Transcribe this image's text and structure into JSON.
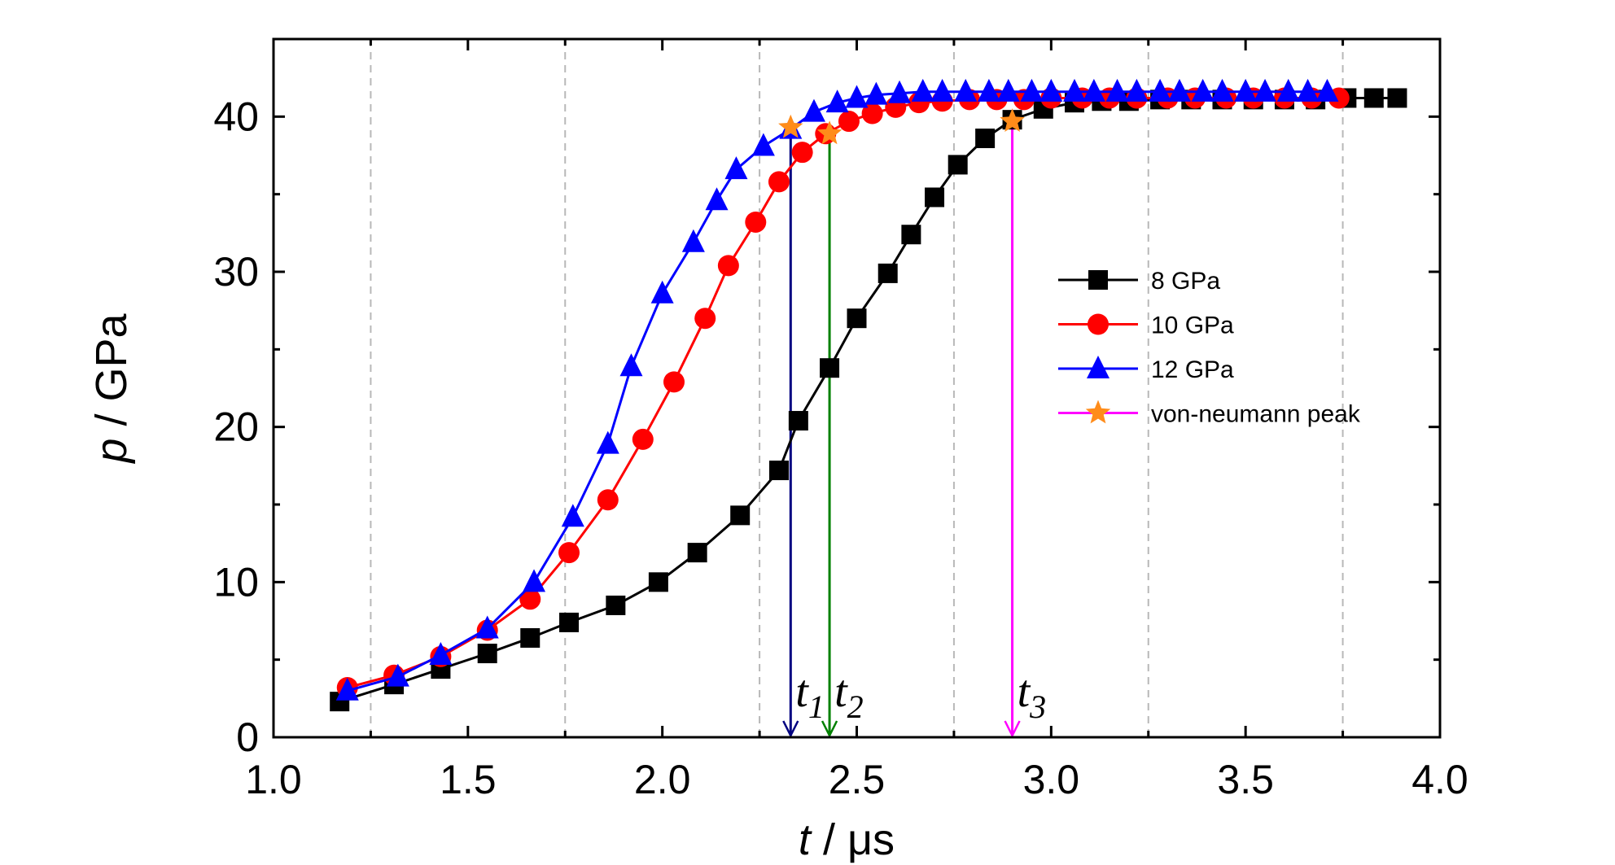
{
  "chart_data": {
    "type": "line",
    "xlabel_italic": "t",
    "xlabel_rest": " / μs",
    "ylabel_italic": "p",
    "ylabel_rest": " / GPa",
    "xlim": [
      1.0,
      4.0
    ],
    "ylim": [
      0,
      45
    ],
    "xticks": [
      "1.0",
      "1.5",
      "2.0",
      "2.5",
      "3.0",
      "3.5",
      "4.0"
    ],
    "yticks": [
      "0",
      "10",
      "20",
      "30",
      "40"
    ],
    "grid": "vertical dashed at 1.25, 1.75, 2.25, 2.75, 3.25, 3.75",
    "legend_position": "right",
    "series": [
      {
        "name": "8 GPa",
        "color": "#000000",
        "marker": "square",
        "x": [
          1.17,
          1.31,
          1.43,
          1.55,
          1.66,
          1.76,
          1.88,
          1.99,
          2.09,
          2.2,
          2.3,
          2.35,
          2.43,
          2.5,
          2.58,
          2.64,
          2.7,
          2.76,
          2.83,
          2.9,
          2.98,
          3.06,
          3.13,
          3.2,
          3.28,
          3.36,
          3.44,
          3.52,
          3.6,
          3.68,
          3.76,
          3.83,
          3.89
        ],
        "y": [
          2.3,
          3.4,
          4.4,
          5.4,
          6.4,
          7.4,
          8.5,
          10.0,
          11.9,
          14.3,
          17.2,
          20.4,
          23.8,
          27.0,
          29.9,
          32.4,
          34.8,
          36.9,
          38.6,
          39.8,
          40.5,
          40.9,
          41.0,
          41.0,
          41.1,
          41.1,
          41.1,
          41.1,
          41.1,
          41.1,
          41.2,
          41.2,
          41.2
        ]
      },
      {
        "name": "10 GPa",
        "color": "#ff0000",
        "marker": "circle",
        "x": [
          1.19,
          1.31,
          1.43,
          1.55,
          1.66,
          1.76,
          1.86,
          1.95,
          2.03,
          2.11,
          2.17,
          2.24,
          2.3,
          2.36,
          2.42,
          2.48,
          2.54,
          2.6,
          2.66,
          2.72,
          2.79,
          2.86,
          2.93,
          3.0,
          3.08,
          3.15,
          3.22,
          3.3,
          3.37,
          3.45,
          3.52,
          3.6,
          3.67,
          3.74
        ],
        "y": [
          3.2,
          4.0,
          5.2,
          6.9,
          8.9,
          11.9,
          15.3,
          19.2,
          22.9,
          27.0,
          30.4,
          33.2,
          35.8,
          37.7,
          38.9,
          39.7,
          40.2,
          40.6,
          40.9,
          41.0,
          41.1,
          41.1,
          41.1,
          41.2,
          41.2,
          41.2,
          41.2,
          41.2,
          41.2,
          41.2,
          41.2,
          41.2,
          41.2,
          41.2
        ]
      },
      {
        "name": "12 GPa",
        "color": "#0000ff",
        "marker": "triangle",
        "x": [
          1.19,
          1.32,
          1.43,
          1.55,
          1.67,
          1.77,
          1.86,
          1.92,
          2.0,
          2.08,
          2.14,
          2.19,
          2.26,
          2.33,
          2.39,
          2.45,
          2.5,
          2.55,
          2.61,
          2.67,
          2.72,
          2.78,
          2.84,
          2.89,
          2.95,
          3.0,
          3.06,
          3.11,
          3.17,
          3.22,
          3.28,
          3.33,
          3.39,
          3.44,
          3.5,
          3.55,
          3.61,
          3.66,
          3.71
        ],
        "y": [
          3.0,
          3.9,
          5.3,
          7.0,
          10.0,
          14.2,
          18.9,
          23.9,
          28.6,
          31.9,
          34.6,
          36.6,
          38.1,
          39.2,
          40.3,
          40.9,
          41.2,
          41.4,
          41.5,
          41.6,
          41.6,
          41.6,
          41.6,
          41.6,
          41.6,
          41.6,
          41.6,
          41.6,
          41.6,
          41.6,
          41.6,
          41.6,
          41.6,
          41.6,
          41.6,
          41.6,
          41.6,
          41.6,
          41.6
        ]
      }
    ],
    "von_neumann_peak": {
      "name": "von-neumann peak",
      "color": "#ff8c1a",
      "marker": "star",
      "x": [
        2.33,
        2.43,
        2.9
      ],
      "y": [
        39.3,
        38.9,
        39.7
      ]
    },
    "arrows": [
      {
        "label": "t",
        "sub": "1",
        "x": 2.33,
        "y_top": 39.3,
        "color": "#000080"
      },
      {
        "label": "t",
        "sub": "2",
        "x": 2.43,
        "y_top": 38.9,
        "color": "#008000"
      },
      {
        "label": "t",
        "sub": "3",
        "x": 2.9,
        "y_top": 39.7,
        "color": "#ff00ff"
      }
    ]
  }
}
